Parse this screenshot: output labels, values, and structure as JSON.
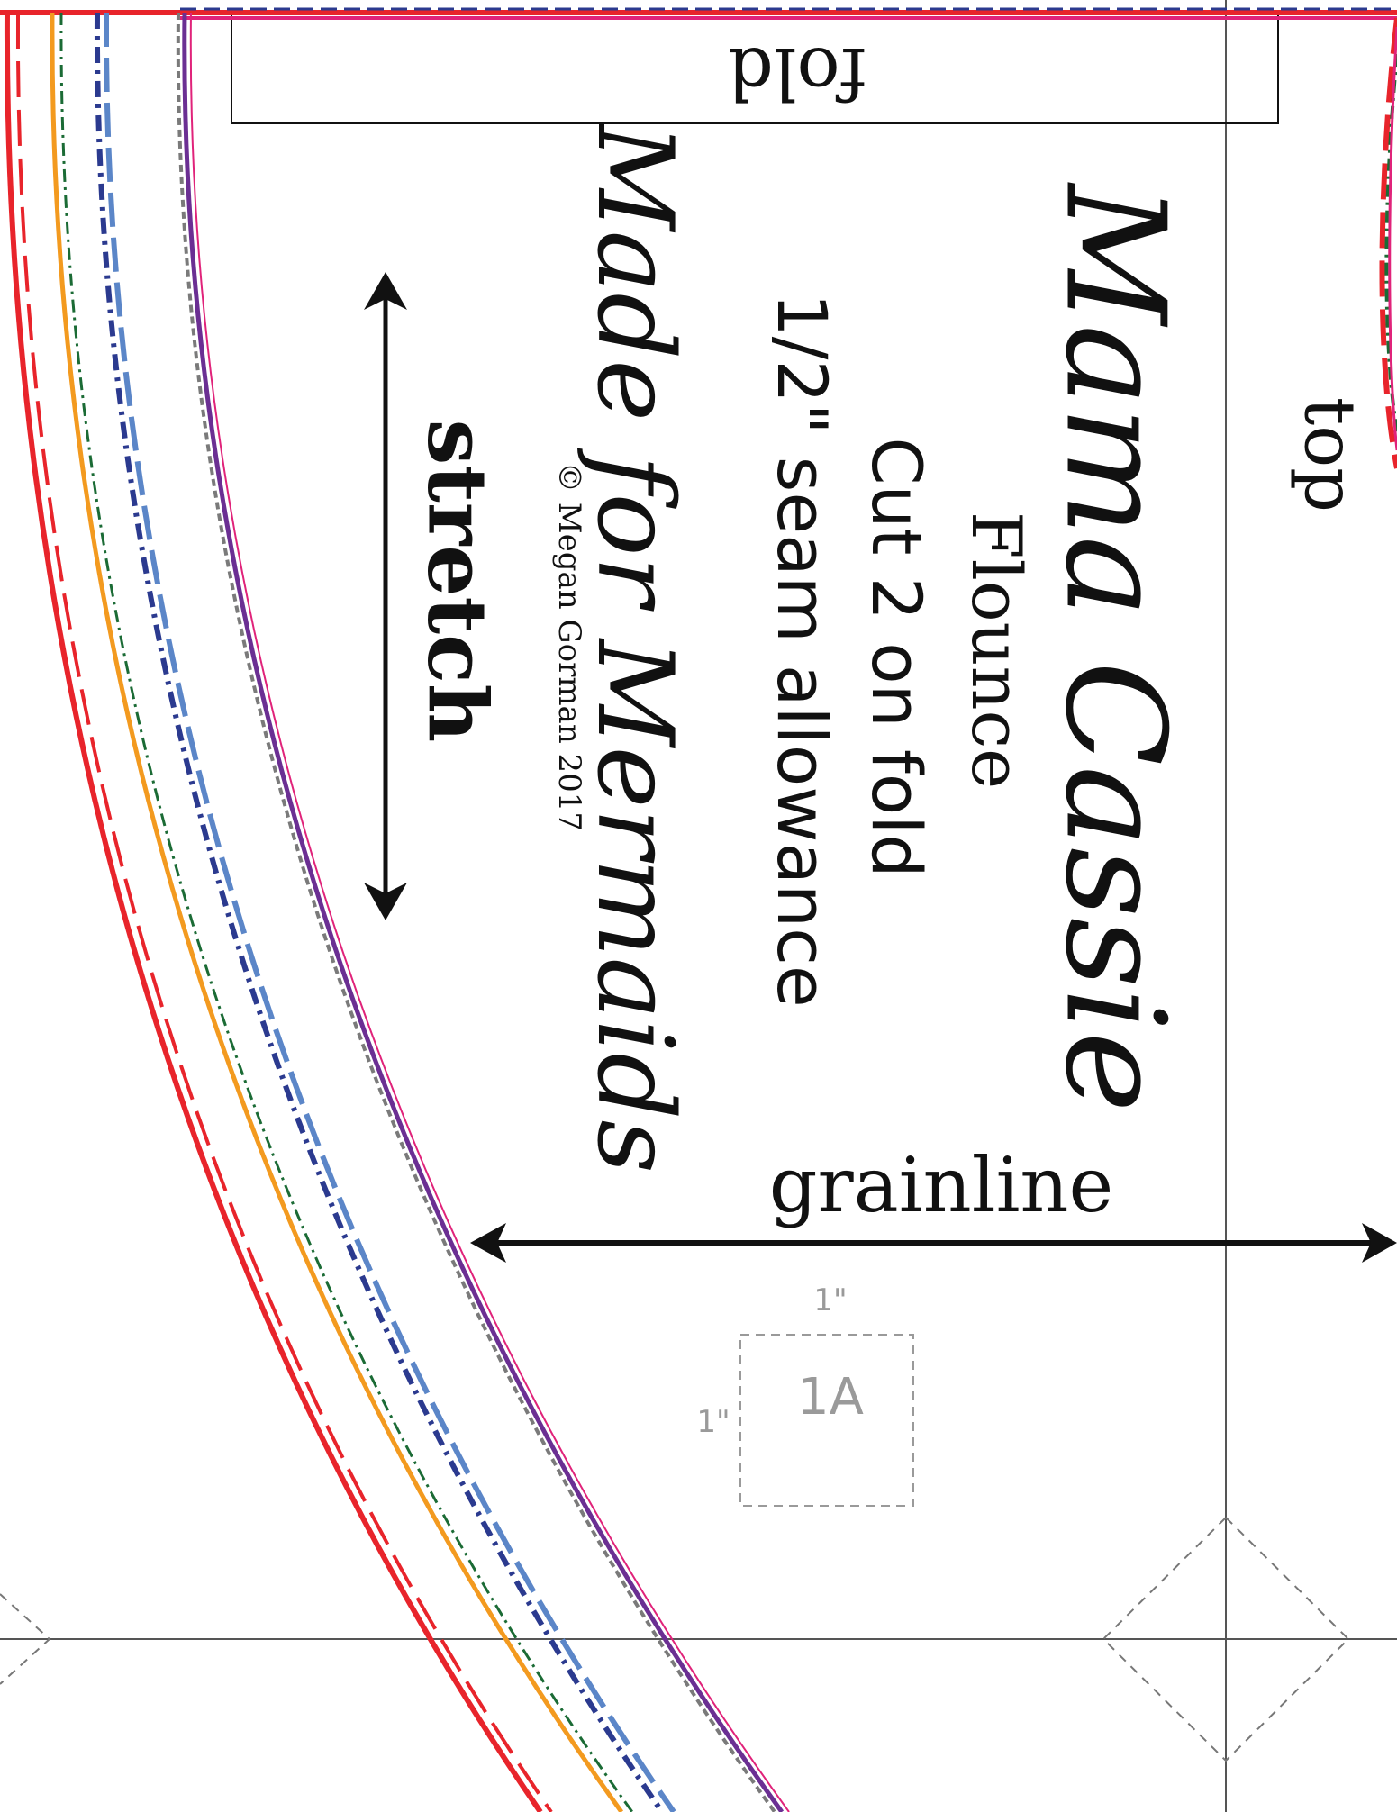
{
  "labels": {
    "fold": "fold",
    "top": "top",
    "title": "Mama Cassie",
    "piece": "Flounce",
    "cut": "Cut 2 on fold",
    "seam": "1/2\" seam allowance",
    "brand": "Made for Mermaids",
    "copyright": "© Megan Gorman 2017",
    "stretch": "stretch",
    "grainline": "grainline",
    "test_square_label": "1A",
    "test_square_width": "1\"",
    "test_square_height": "1\""
  },
  "size_lines": [
    {
      "size": "outer",
      "color": "#e8242b",
      "style": "solid"
    },
    {
      "size": "outer-dashed",
      "color": "#e8242b",
      "style": "long-dash"
    },
    {
      "size": "orange",
      "color": "#f39a1f",
      "style": "solid"
    },
    {
      "size": "green",
      "color": "#1b6b35",
      "style": "dash-dot"
    },
    {
      "size": "navy",
      "color": "#2b3a8f",
      "style": "dash-dot"
    },
    {
      "size": "blue",
      "color": "#5b86c8",
      "style": "long-dash"
    },
    {
      "size": "navy-dashed",
      "color": "#2b3a8f",
      "style": "dash"
    },
    {
      "size": "purple",
      "color": "#6b2f93",
      "style": "solid"
    },
    {
      "size": "grey",
      "color": "#7a7a7a",
      "style": "dash"
    },
    {
      "size": "magenta",
      "color": "#e0237a",
      "style": "solid"
    }
  ],
  "colors": {
    "ink": "#111111",
    "guide": "#555555",
    "test_square": "#9a9a9a"
  }
}
